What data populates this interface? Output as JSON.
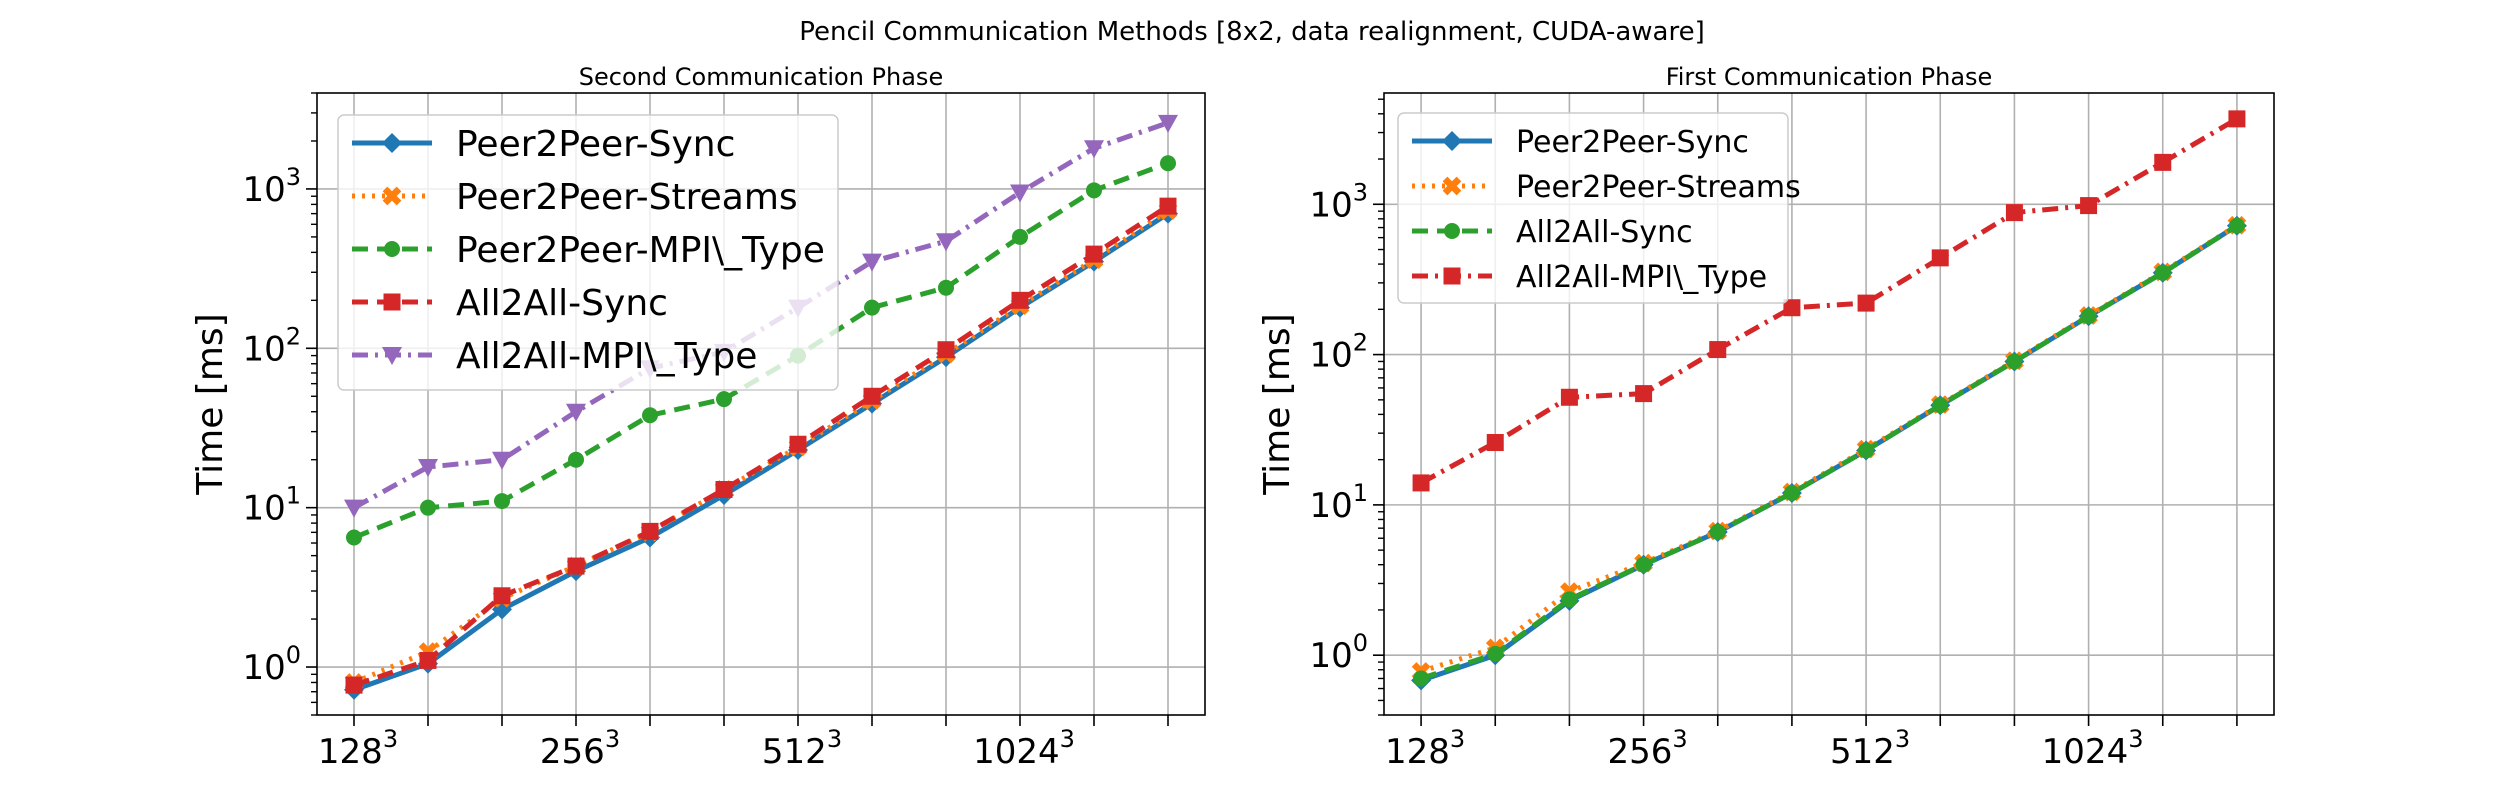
{
  "figure": {
    "suptitle": "Pencil Communication Methods [8x2, data realignment, CUDA-aware]"
  },
  "chart_data": [
    {
      "type": "line",
      "title": "Second Communication Phase",
      "ylabel": "Time [ms]",
      "yscale": "log",
      "ylim": [
        0.5,
        4000
      ],
      "grid": true,
      "legend_position": "top-left",
      "x": [
        1,
        2,
        3,
        4,
        5,
        6,
        7,
        8,
        9,
        10,
        11,
        12
      ],
      "x_tick_labels": [
        {
          "x": 1,
          "base": "128",
          "exp": "3"
        },
        {
          "x": 4,
          "base": "256",
          "exp": "3"
        },
        {
          "x": 7,
          "base": "512",
          "exp": "3"
        },
        {
          "x": 10,
          "base": "1024",
          "exp": "3"
        }
      ],
      "y_tick_labels": [
        {
          "value": 1,
          "base": "10",
          "exp": "0"
        },
        {
          "value": 10,
          "base": "10",
          "exp": "1"
        },
        {
          "value": 100,
          "base": "10",
          "exp": "2"
        },
        {
          "value": 1000,
          "base": "10",
          "exp": "3"
        }
      ],
      "series": [
        {
          "name": "Peer2Peer-Sync",
          "color": "#1f77b4",
          "dash": "solid",
          "marker": "diamond",
          "values": [
            0.72,
            1.05,
            2.3,
            4.0,
            6.5,
            12,
            23,
            45,
            88,
            180,
            350,
            700
          ]
        },
        {
          "name": "Peer2Peer-Streams",
          "color": "#ff7f0e",
          "dash": "dotted",
          "marker": "x",
          "values": [
            0.8,
            1.25,
            2.7,
            4.3,
            7.0,
            13,
            24,
            47,
            92,
            185,
            360,
            730
          ]
        },
        {
          "name": "Peer2Peer-MPI\\_Type",
          "color": "#2ca02c",
          "dash": "dashed",
          "marker": "circle",
          "values": [
            6.5,
            10,
            11,
            20,
            38,
            48,
            90,
            180,
            240,
            500,
            980,
            1450
          ]
        },
        {
          "name": "All2All-Sync",
          "color": "#d62728",
          "dash": "dashed",
          "marker": "square",
          "values": [
            0.77,
            1.1,
            2.8,
            4.3,
            7.1,
            13,
            25,
            50,
            98,
            200,
            390,
            780
          ]
        },
        {
          "name": "All2All-MPI\\_Type",
          "color": "#9467bd",
          "dash": "dashdot",
          "marker": "triangle-down",
          "values": [
            10,
            18,
            20,
            40,
            75,
            95,
            180,
            350,
            470,
            950,
            1800,
            2600
          ]
        }
      ]
    },
    {
      "type": "line",
      "title": "First Communication Phase",
      "ylabel": "Time [ms]",
      "yscale": "log",
      "ylim": [
        0.4,
        5500
      ],
      "grid": true,
      "legend_position": "top-left",
      "x": [
        1,
        2,
        3,
        4,
        5,
        6,
        7,
        8,
        9,
        10,
        11,
        12
      ],
      "x_tick_labels": [
        {
          "x": 1,
          "base": "128",
          "exp": "3"
        },
        {
          "x": 4,
          "base": "256",
          "exp": "3"
        },
        {
          "x": 7,
          "base": "512",
          "exp": "3"
        },
        {
          "x": 10,
          "base": "1024",
          "exp": "3"
        }
      ],
      "y_tick_labels": [
        {
          "value": 1,
          "base": "10",
          "exp": "0"
        },
        {
          "value": 10,
          "base": "10",
          "exp": "1"
        },
        {
          "value": 100,
          "base": "10",
          "exp": "2"
        },
        {
          "value": 1000,
          "base": "10",
          "exp": "3"
        }
      ],
      "series": [
        {
          "name": "Peer2Peer-Sync",
          "color": "#1f77b4",
          "dash": "solid",
          "marker": "diamond",
          "values": [
            0.68,
            1.0,
            2.3,
            4.0,
            6.6,
            12,
            23,
            46,
            90,
            180,
            350,
            720
          ]
        },
        {
          "name": "Peer2Peer-Streams",
          "color": "#ff7f0e",
          "dash": "dotted",
          "marker": "x",
          "values": [
            0.78,
            1.12,
            2.65,
            4.1,
            6.7,
            12.2,
            23.5,
            46.5,
            91,
            182,
            355,
            725
          ]
        },
        {
          "name": "All2All-Sync",
          "color": "#2ca02c",
          "dash": "dashed",
          "marker": "circle",
          "values": [
            0.7,
            1.02,
            2.35,
            4.0,
            6.6,
            12,
            23,
            46,
            90,
            180,
            350,
            720
          ]
        },
        {
          "name": "All2All-MPI\\_Type",
          "color": "#d62728",
          "dash": "dashdot",
          "marker": "square",
          "values": [
            14,
            26,
            52,
            55,
            108,
            205,
            220,
            440,
            880,
            980,
            1900,
            3700
          ]
        }
      ]
    }
  ]
}
